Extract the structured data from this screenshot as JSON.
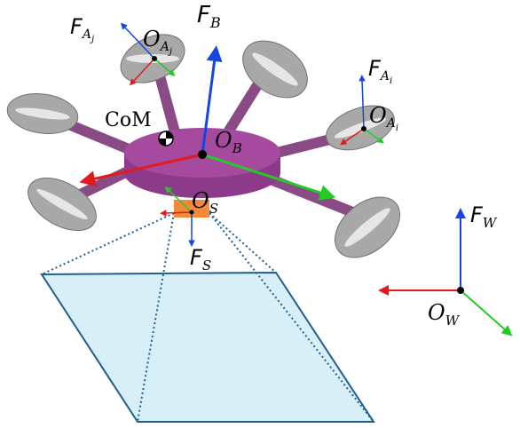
{
  "colors": {
    "body_fill": "#8e3a8a",
    "body_top": "#a64aa0",
    "arm": "#8a4a86",
    "propeller": "#a8a8a8",
    "propeller_blade": "#e6e6e6",
    "sensor": "#f4893c",
    "fov_fill": "#d8eff8",
    "fov_stroke": "#1f5f8f",
    "axis_x": "#e31a1c",
    "axis_y": "#22cc22",
    "axis_z": "#1546e0"
  },
  "labels": {
    "frame_b": {
      "main": "F",
      "sub": "B"
    },
    "origin_b": {
      "main": "O",
      "sub": "B"
    },
    "frame_aj": {
      "main": "F",
      "sub": "A",
      "subsub": "j"
    },
    "origin_aj": {
      "main": "O",
      "sub": "A",
      "subsub": "j"
    },
    "frame_ai": {
      "main": "F",
      "sub": "A",
      "subsub": "i"
    },
    "origin_ai": {
      "main": "O",
      "sub": "A",
      "subsub": "i"
    },
    "com": "CoM",
    "origin_s": {
      "main": "O",
      "sub": "S"
    },
    "frame_s": {
      "main": "F",
      "sub": "S"
    },
    "frame_w": {
      "main": "F",
      "sub": "W"
    },
    "origin_w": {
      "main": "O",
      "sub": "W"
    }
  }
}
